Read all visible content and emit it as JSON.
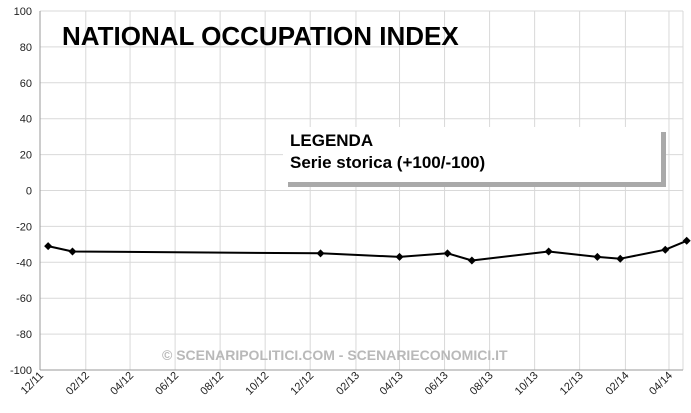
{
  "chart_data": {
    "type": "line",
    "title": "NATIONAL OCCUPATION INDEX",
    "legend": {
      "heading": "LEGENDA",
      "entry": "Serie storica (+100/-100)",
      "placement": "center"
    },
    "watermark": "© SCENARIPOLITICI.COM - SCENARIECONOMICI.IT",
    "grid": true,
    "ylim": [
      -100,
      100
    ],
    "yticks": [
      100,
      80,
      60,
      40,
      20,
      0,
      -20,
      -40,
      -60,
      -80,
      -100
    ],
    "xlim": [
      "2011-12-01",
      "2014-04-20"
    ],
    "xticks": [
      "12/11",
      "02/12",
      "04/12",
      "06/12",
      "08/12",
      "10/12",
      "12/12",
      "02/13",
      "04/13",
      "06/13",
      "08/13",
      "10/13",
      "12/13",
      "02/14",
      "04/14"
    ],
    "xtick_dates": [
      "2011-12-01",
      "2012-02-01",
      "2012-04-01",
      "2012-06-01",
      "2012-08-01",
      "2012-10-01",
      "2012-12-01",
      "2013-02-01",
      "2013-04-01",
      "2013-06-01",
      "2013-08-01",
      "2013-10-01",
      "2013-12-01",
      "2014-02-01",
      "2014-04-01"
    ],
    "series": [
      {
        "color": "#000000",
        "x": [
          "2011-12-12",
          "2012-01-14",
          "2012-12-15",
          "2013-04-01",
          "2013-06-05",
          "2013-07-08",
          "2013-10-20",
          "2013-12-25",
          "2014-01-25",
          "2014-03-27",
          "2014-04-25"
        ],
        "values": [
          -31,
          -34,
          -35,
          -37,
          -35,
          -39,
          -34,
          -37,
          -38,
          -33,
          -28
        ]
      }
    ]
  }
}
